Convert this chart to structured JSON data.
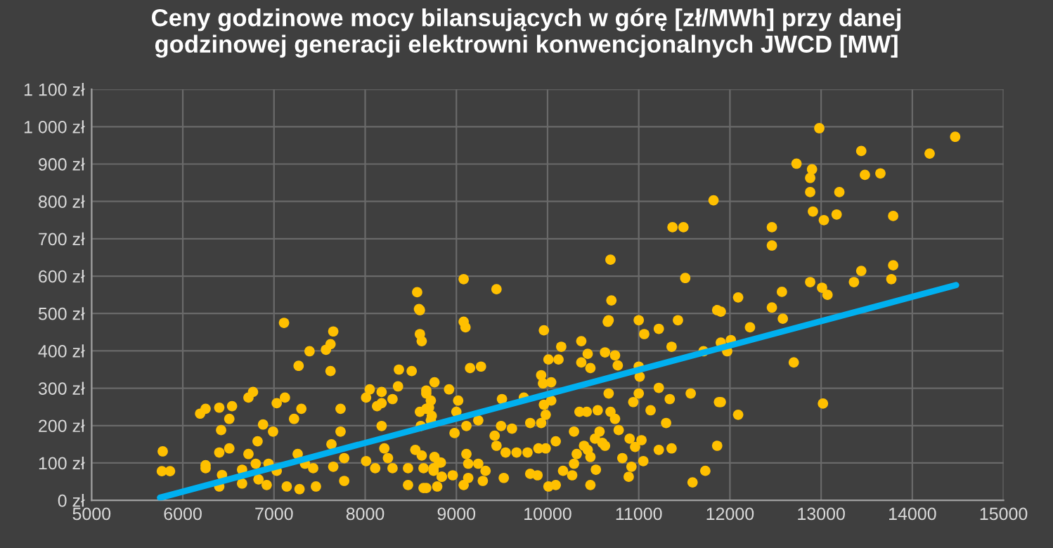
{
  "chart_data": {
    "type": "scatter",
    "title": "Ceny godzinowe mocy bilansujących w górę [zł/MWh] przy danej\ngodzinowej generacji elektrowni konwencjonalnych JWCD [MW]",
    "series": [
      {
        "color": "#ffc000",
        "marker": "circle",
        "x": [
          5780,
          5770,
          5860,
          6250,
          6420,
          6510,
          6190,
          6250,
          6400,
          6540,
          6720,
          6770,
          7030,
          7120,
          7300,
          7220,
          6880,
          6990,
          6820,
          6400,
          6510,
          6250,
          6430,
          6400,
          6650,
          6650,
          6720,
          6800,
          6830,
          6920,
          6940,
          7030,
          7140,
          7280,
          7460,
          7260,
          7340,
          7430,
          7630,
          7650,
          7770,
          7770,
          7730,
          7730,
          7110,
          7270,
          7390,
          7570,
          7620,
          7650,
          7620,
          8010,
          8110,
          8210,
          8250,
          8300,
          8470,
          8550,
          8620,
          8640,
          8750,
          8810,
          8470,
          8640,
          8790,
          8840,
          8180,
          8610,
          8720,
          8010,
          8050,
          8180,
          8300,
          8130,
          8180,
          8370,
          8510,
          8360,
          8760,
          8670,
          8720,
          8600,
          8670,
          8600,
          8620,
          8600,
          8570,
          8590,
          9080,
          9440,
          9080,
          10690,
          10700,
          10670,
          11000,
          11430,
          11370,
          11490,
          11510,
          11820,
          11860,
          9100,
          9960,
          10660,
          11060,
          11220,
          11900,
          10150,
          10370,
          10440,
          10630,
          10740,
          10770,
          11000,
          11010,
          11360,
          11710,
          11900,
          10010,
          10120,
          10370,
          10470,
          9930,
          10040,
          9950,
          9150,
          9270,
          8920,
          9020,
          9000,
          9240,
          9110,
          8980,
          8730,
          8670,
          8700,
          9500,
          9740,
          9960,
          10040,
          9980,
          9810,
          9930,
          9610,
          9490,
          10350,
          10430,
          10550,
          10690,
          10740,
          10780,
          10670,
          11000,
          10940,
          11130,
          11300,
          11220,
          11340,
          11570,
          11900,
          10290,
          10570,
          10520,
          10600,
          10400,
          10440,
          10320,
          10470,
          10630,
          10900,
          11030,
          10960,
          11220,
          11360,
          11860,
          10820,
          10920,
          11050,
          10890,
          10290,
          10530,
          10270,
          10170,
          10470,
          10010,
          10090,
          11590,
          11730,
          10090,
          9980,
          9900,
          9780,
          9660,
          9540,
          9440,
          9420,
          9810,
          9890,
          9520,
          9320,
          9290,
          9130,
          9080,
          9130,
          9110,
          9240,
          8830,
          8840,
          8670,
          8960,
          8750,
          8760,
          12980,
          14470,
          14190,
          13440,
          12730,
          12900,
          12880,
          12880,
          13480,
          13650,
          13200,
          12910,
          13030,
          13170,
          13790,
          12460,
          12460,
          13790,
          13440,
          13360,
          13770,
          12880,
          13010,
          13070,
          12570,
          12460,
          12580,
          12090,
          12220,
          12010,
          11970,
          12700,
          11880,
          12090,
          13020
        ],
        "values": [
          131,
          78,
          78,
          86,
          188,
          218,
          232,
          245,
          248,
          252,
          275,
          290,
          260,
          275,
          245,
          218,
          203,
          184,
          158,
          128,
          139,
          94,
          68,
          37,
          82,
          45,
          124,
          98,
          56,
          41,
          98,
          79,
          37,
          30,
          37,
          124,
          98,
          86,
          150,
          90,
          113,
          52,
          184,
          245,
          475,
          360,
          399,
          403,
          418,
          452,
          346,
          105,
          86,
          139,
          113,
          86,
          86,
          135,
          120,
          86,
          86,
          101,
          41,
          33,
          37,
          63,
          199,
          199,
          214,
          275,
          297,
          290,
          271,
          252,
          260,
          350,
          346,
          305,
          316,
          294,
          267,
          237,
          245,
          445,
          426,
          509,
          557,
          512,
          592,
          565,
          478,
          644,
          535,
          482,
          482,
          482,
          731,
          731,
          595,
          803,
          509,
          463,
          455,
          478,
          445,
          459,
          505,
          411,
          426,
          392,
          396,
          388,
          361,
          358,
          331,
          411,
          399,
          422,
          377,
          377,
          369,
          354,
          335,
          316,
          313,
          354,
          358,
          297,
          267,
          237,
          214,
          199,
          180,
          226,
          286,
          248,
          271,
          275,
          256,
          267,
          229,
          207,
          207,
          192,
          199,
          237,
          237,
          241,
          237,
          218,
          188,
          286,
          286,
          263,
          241,
          207,
          301,
          271,
          286,
          263,
          184,
          184,
          165,
          154,
          146,
          135,
          124,
          116,
          146,
          165,
          161,
          143,
          135,
          139,
          146,
          113,
          90,
          105,
          63,
          98,
          82,
          67,
          79,
          41,
          37,
          41,
          48,
          79,
          158,
          139,
          139,
          128,
          128,
          128,
          146,
          173,
          71,
          67,
          60,
          79,
          52,
          60,
          41,
          98,
          124,
          98,
          101,
          63,
          33,
          67,
          79,
          116,
          996,
          973,
          928,
          935,
          901,
          886,
          863,
          825,
          871,
          875,
          825,
          773,
          750,
          765,
          761,
          731,
          682,
          629,
          614,
          584,
          592,
          584,
          569,
          550,
          558,
          516,
          486,
          543,
          463,
          429,
          399,
          369,
          263,
          229,
          259
        ]
      },
      {
        "type": "line",
        "color": "#00b0f0",
        "x": [
          5750,
          14480
        ],
        "values": [
          7,
          576
        ]
      }
    ],
    "xlim": [
      5000,
      15000
    ],
    "xticks": [
      5000,
      6000,
      7000,
      8000,
      9000,
      10000,
      11000,
      12000,
      13000,
      14000,
      15000
    ],
    "ylim": [
      0,
      1100
    ],
    "yticks": [
      {
        "value": 0,
        "label": "0 zł"
      },
      {
        "value": 100,
        "label": "100 zł"
      },
      {
        "value": 200,
        "label": "200 zł"
      },
      {
        "value": 300,
        "label": "300 zł"
      },
      {
        "value": 400,
        "label": "400 zł"
      },
      {
        "value": 500,
        "label": "500 zł"
      },
      {
        "value": 600,
        "label": "600 zł"
      },
      {
        "value": 700,
        "label": "700 zł"
      },
      {
        "value": 800,
        "label": "800 zł"
      },
      {
        "value": 900,
        "label": "900 zł"
      },
      {
        "value": 1000,
        "label": "1 000 zł"
      },
      {
        "value": 1100,
        "label": "1 100 zł"
      }
    ],
    "grid": true
  }
}
